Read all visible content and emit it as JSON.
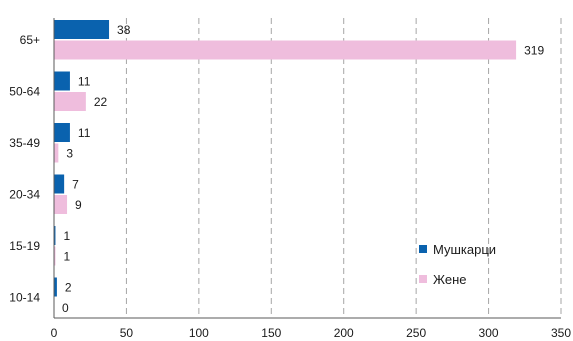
{
  "chart_data": {
    "type": "bar",
    "orientation": "horizontal",
    "categories": [
      "65+",
      "50-64",
      "35-49",
      "20-34",
      "15-19",
      "10-14"
    ],
    "series": [
      {
        "name": "Мушкарци",
        "color": "#0a62ae",
        "values": [
          38,
          11,
          11,
          7,
          1,
          2
        ]
      },
      {
        "name": "Жене",
        "color": "#efbddd",
        "values": [
          319,
          22,
          3,
          9,
          1,
          0
        ]
      }
    ],
    "xlim": [
      0,
      350
    ],
    "xticks": [
      0,
      50,
      100,
      150,
      200,
      250,
      300,
      350
    ],
    "grid": "vertical-dashed",
    "legend": "bottom-right"
  }
}
